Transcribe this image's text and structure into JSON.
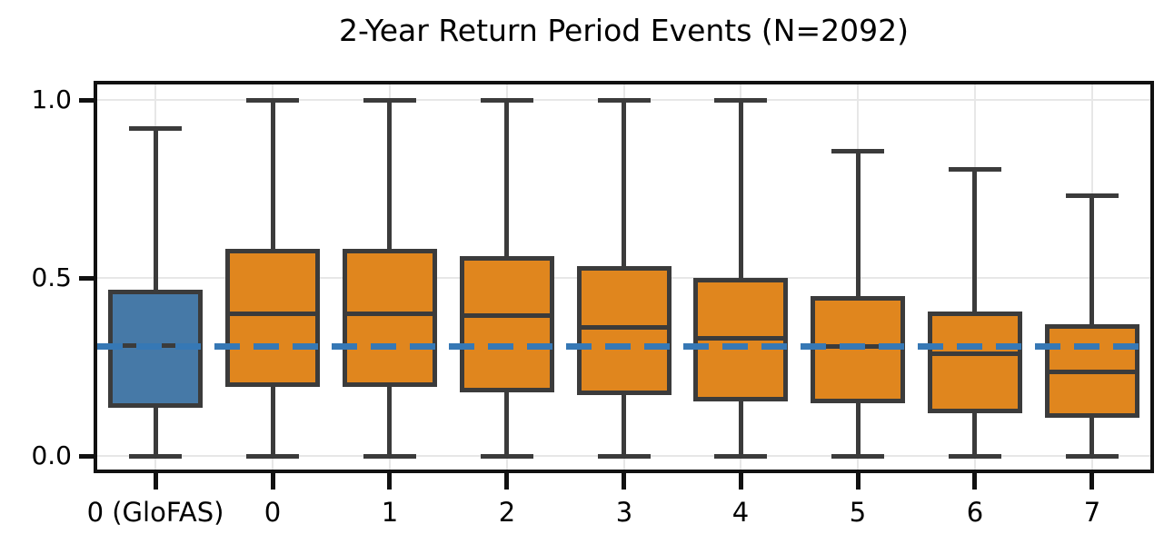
{
  "chart_data": {
    "type": "boxplot",
    "title": "2-Year Return Period Events (N=2092)",
    "xlabel": "",
    "ylabel": "",
    "categories": [
      "0 (GloFAS)",
      "0",
      "1",
      "2",
      "3",
      "4",
      "5",
      "6",
      "7"
    ],
    "yticks": [
      {
        "value": 0.0,
        "label": "0.0"
      },
      {
        "value": 0.5,
        "label": "0.5"
      },
      {
        "value": 1.0,
        "label": "1.0"
      }
    ],
    "ylim": [
      -0.043,
      1.043
    ],
    "grid": true,
    "legend_position": "none",
    "boxes": [
      {
        "category": "0 (GloFAS)",
        "whisker_low": 0.0,
        "q1": 0.14,
        "median": 0.31,
        "q3": 0.46,
        "whisker_high": 0.92,
        "fill": "#4679A7"
      },
      {
        "category": "0",
        "whisker_low": 0.0,
        "q1": 0.2,
        "median": 0.4,
        "q3": 0.575,
        "whisker_high": 1.0,
        "fill": "#E0861E"
      },
      {
        "category": "1",
        "whisker_low": 0.0,
        "q1": 0.2,
        "median": 0.4,
        "q3": 0.575,
        "whisker_high": 1.0,
        "fill": "#E0861E"
      },
      {
        "category": "2",
        "whisker_low": 0.0,
        "q1": 0.185,
        "median": 0.395,
        "q3": 0.555,
        "whisker_high": 1.0,
        "fill": "#E0861E"
      },
      {
        "category": "3",
        "whisker_low": 0.0,
        "q1": 0.178,
        "median": 0.36,
        "q3": 0.528,
        "whisker_high": 1.0,
        "fill": "#E0861E"
      },
      {
        "category": "4",
        "whisker_low": 0.0,
        "q1": 0.16,
        "median": 0.33,
        "q3": 0.494,
        "whisker_high": 1.0,
        "fill": "#E0861E"
      },
      {
        "category": "5",
        "whisker_low": 0.0,
        "q1": 0.155,
        "median": 0.307,
        "q3": 0.443,
        "whisker_high": 0.857,
        "fill": "#E0861E"
      },
      {
        "category": "6",
        "whisker_low": 0.0,
        "q1": 0.128,
        "median": 0.286,
        "q3": 0.4,
        "whisker_high": 0.806,
        "fill": "#E0861E"
      },
      {
        "category": "7",
        "whisker_low": 0.0,
        "q1": 0.115,
        "median": 0.235,
        "q3": 0.364,
        "whisker_high": 0.73,
        "fill": "#E0861E"
      }
    ],
    "reference_line": {
      "value": 0.307,
      "style": "dashed",
      "color": "#3678B5"
    },
    "colors": {
      "glofas_box": "#4679A7",
      "lead_time_box": "#E0861E",
      "box_edge": "#3B3B3B",
      "grid": "#E7E7E7",
      "frame": "#111111",
      "text": "#000000",
      "background": "#ffffff"
    }
  }
}
